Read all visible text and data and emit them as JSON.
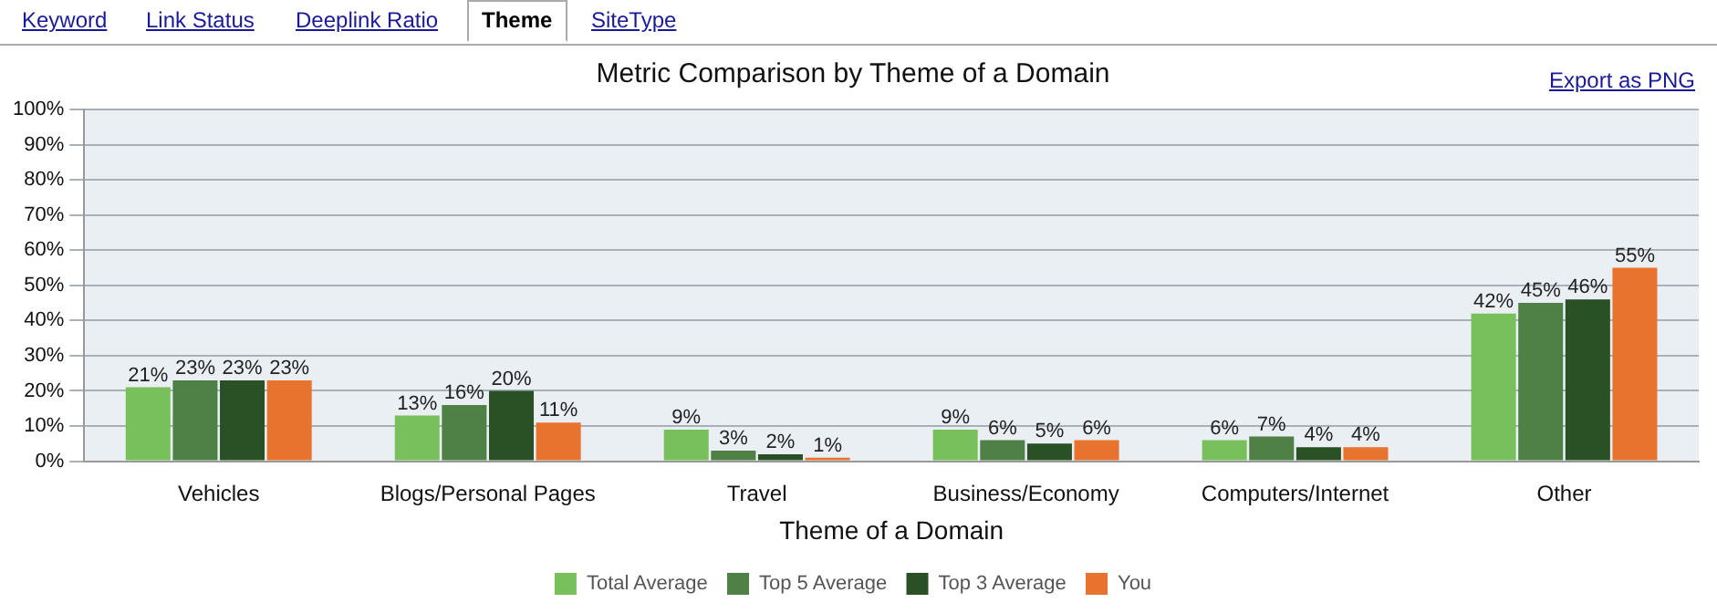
{
  "chart_data": {
    "type": "bar",
    "title": "Metric Comparison by Theme of a Domain",
    "xlabel": "Theme of a Domain",
    "categories": [
      "Vehicles",
      "Blogs/Personal Pages",
      "Travel",
      "Business/Economy",
      "Computers/Internet",
      "Other"
    ],
    "series": [
      {
        "name": "Total Average",
        "color": "#78c05c",
        "values": [
          21,
          13,
          9,
          9,
          6,
          42
        ],
        "value_labels": [
          "21%",
          "13%",
          "9%",
          "9%",
          "6%",
          "42%"
        ]
      },
      {
        "name": "Top 5 Average",
        "color": "#4f8045",
        "values": [
          23,
          16,
          3,
          6,
          7,
          45
        ],
        "value_labels": [
          "23%",
          "16%",
          "3%",
          "6%",
          "7%",
          "45%"
        ]
      },
      {
        "name": "Top 3 Average",
        "color": "#2a5026",
        "values": [
          23,
          20,
          2,
          5,
          4,
          46
        ],
        "value_labels": [
          "23%",
          "20%",
          "2%",
          "5%",
          "4%",
          "46%"
        ]
      },
      {
        "name": "You",
        "color": "#e8732f",
        "values": [
          23,
          11,
          1,
          6,
          4,
          55
        ],
        "value_labels": [
          "23%",
          "11%",
          "1%",
          "6%",
          "4%",
          "55%"
        ]
      }
    ],
    "ylim": [
      0,
      100
    ],
    "yticks": [
      {
        "value": 0,
        "label": "0%"
      },
      {
        "value": 10,
        "label": "10%"
      },
      {
        "value": 20,
        "label": "20%"
      },
      {
        "value": 30,
        "label": "30%"
      },
      {
        "value": 40,
        "label": "40%"
      },
      {
        "value": 50,
        "label": "50%"
      },
      {
        "value": 60,
        "label": "60%"
      },
      {
        "value": 70,
        "label": "70%"
      },
      {
        "value": 80,
        "label": "80%"
      },
      {
        "value": 90,
        "label": "90%"
      },
      {
        "value": 100,
        "label": "100%"
      }
    ],
    "grid": "y",
    "legend": "bottom",
    "annotations": [
      "Keyword",
      "Link Status",
      "Deeplink Ratio",
      "Theme",
      "SiteType",
      "Export as PNG"
    ]
  }
}
